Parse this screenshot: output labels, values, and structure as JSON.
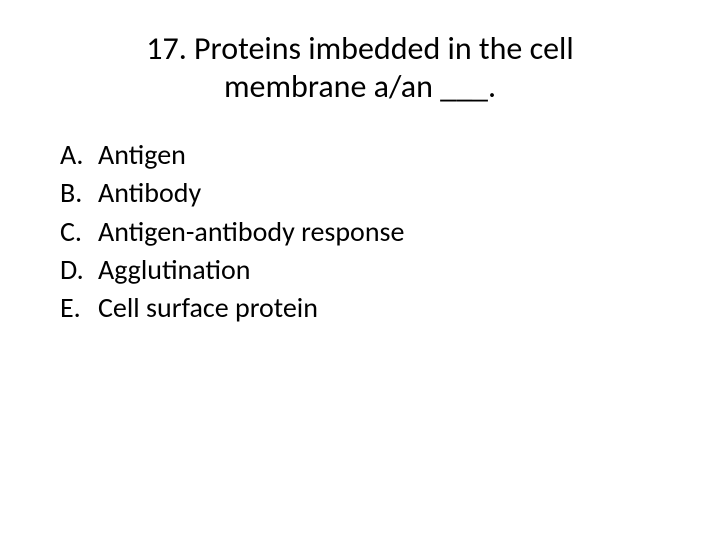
{
  "title_line1": "17. Proteins imbedded in the cell",
  "title_line2": "membrane a/an ___.",
  "options": [
    {
      "letter": "A.",
      "text": "Antigen"
    },
    {
      "letter": "B.",
      "text": "Antibody"
    },
    {
      "letter": "C.",
      "text": "Antigen-antibody response"
    },
    {
      "letter": "D.",
      "text": "Agglutination"
    },
    {
      "letter": "E.",
      "text": "Cell surface protein"
    }
  ],
  "styling": {
    "background_color": "#ffffff",
    "text_color": "#000000",
    "title_fontsize": 32,
    "option_fontsize": 28,
    "font_family": "Calibri"
  }
}
